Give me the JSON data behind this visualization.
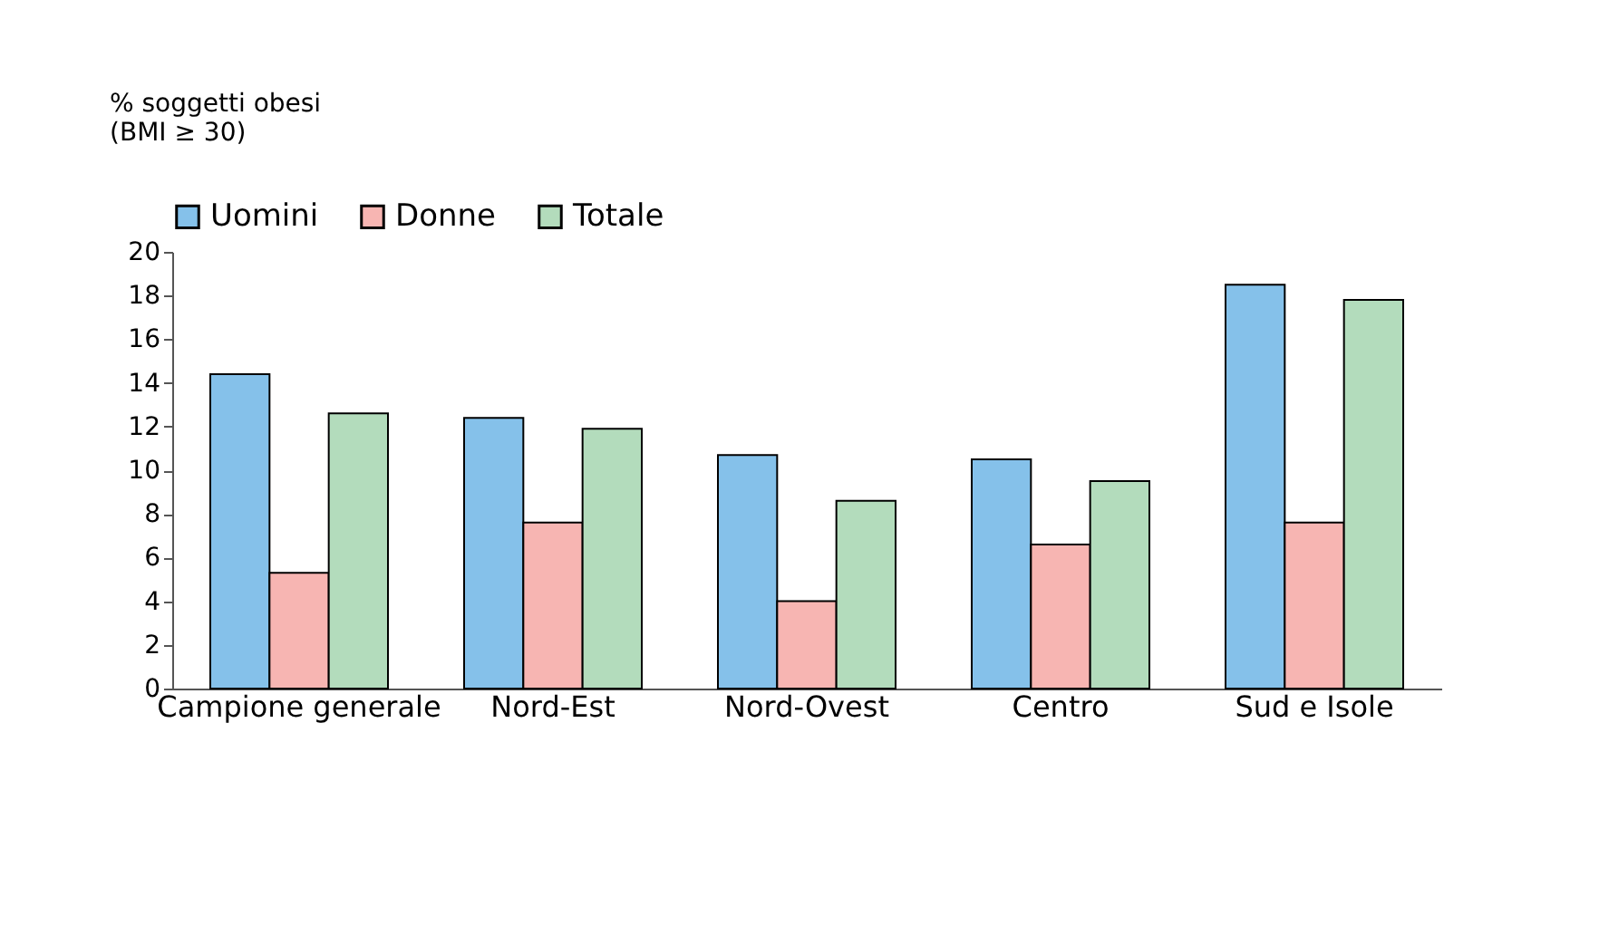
{
  "chart_data": {
    "type": "bar",
    "ylabel": "% soggetti obesi\n(BMI ≥ 30)",
    "categories": [
      "Campione generale",
      "Nord-Est",
      "Nord-Ovest",
      "Centro",
      "Sud e Isole"
    ],
    "series": [
      {
        "name": "Uomini",
        "color": "#85c1ea",
        "values": [
          14.4,
          12.4,
          10.7,
          10.5,
          18.5
        ]
      },
      {
        "name": "Donne",
        "color": "#f7b5b2",
        "values": [
          5.3,
          7.6,
          4.0,
          6.6,
          7.6
        ]
      },
      {
        "name": "Totale",
        "color": "#b3dcbc",
        "values": [
          12.6,
          11.9,
          8.6,
          9.5,
          17.8
        ]
      }
    ],
    "ylim": [
      0,
      20
    ],
    "yticks": [
      0,
      2,
      4,
      6,
      8,
      10,
      12,
      14,
      16,
      18,
      20
    ],
    "grid": false,
    "legend": "top"
  }
}
